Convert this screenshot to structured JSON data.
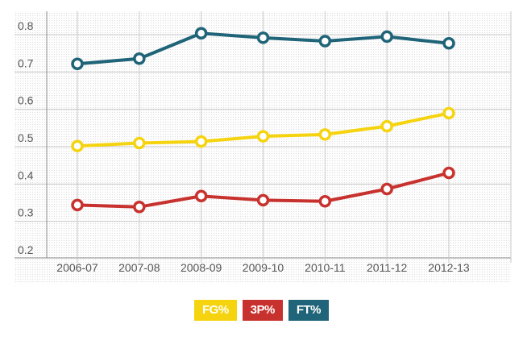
{
  "chart_data": {
    "type": "line",
    "categories": [
      "2006-07",
      "2007-08",
      "2008-09",
      "2009-10",
      "2010-11",
      "2011-12",
      "2012-13"
    ],
    "series": [
      {
        "name": "FG%",
        "color": "#f5d40f",
        "values": [
          0.478,
          0.486,
          0.49,
          0.504,
          0.509,
          0.531,
          0.566
        ]
      },
      {
        "name": "3P%",
        "color": "#c8322e",
        "values": [
          0.32,
          0.315,
          0.344,
          0.333,
          0.33,
          0.363,
          0.406
        ]
      },
      {
        "name": "FT%",
        "color": "#1f6478",
        "values": [
          0.698,
          0.712,
          0.78,
          0.768,
          0.759,
          0.771,
          0.753
        ]
      }
    ],
    "yticks": [
      "0.2",
      "0.3",
      "0.4",
      "0.5",
      "0.6",
      "0.7",
      "0.8"
    ],
    "ylim": [
      0.18,
      0.82
    ],
    "grid": true,
    "legend_position": "bottom-center",
    "title": "",
    "xlabel": "",
    "ylabel": ""
  }
}
